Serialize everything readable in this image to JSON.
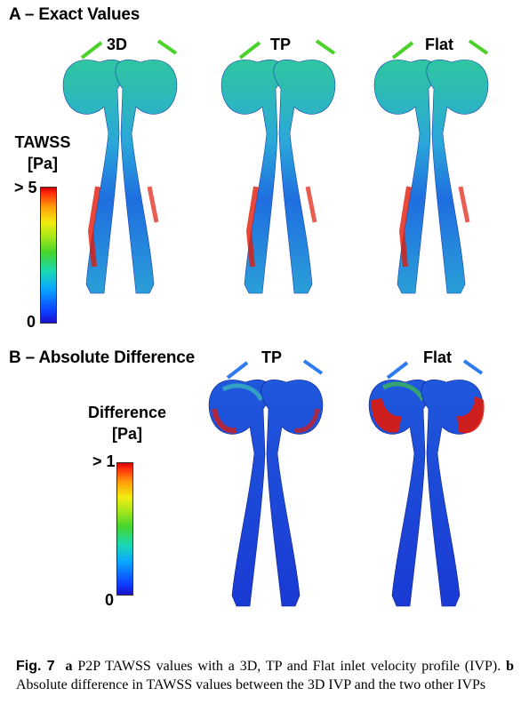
{
  "panel_a": {
    "title": "A – Exact Values",
    "columns": [
      "3D",
      "TP",
      "Flat"
    ],
    "colorbar": {
      "title_line1": "TAWSS",
      "title_line2": "[Pa]",
      "max_label": "> 5",
      "min_label": "0"
    }
  },
  "panel_b": {
    "title": "B – Absolute Difference",
    "columns": [
      "TP",
      "Flat"
    ],
    "colorbar": {
      "title_line1": "Difference",
      "title_line2": "[Pa]",
      "max_label": "> 1",
      "min_label": "0"
    }
  },
  "caption": {
    "fig_label": "Fig. 7",
    "a_label": "a",
    "a_text": " P2P TAWSS values with a 3D, TP and Flat inlet velocity profile (IVP). ",
    "b_label": "b",
    "b_text": " Absolute difference in TAWSS values between the 3D IVP and the two other IVPs"
  },
  "colors": {
    "low": "#1a2cd8",
    "mid": "#3fd2b0",
    "high": "#e01a0a"
  }
}
